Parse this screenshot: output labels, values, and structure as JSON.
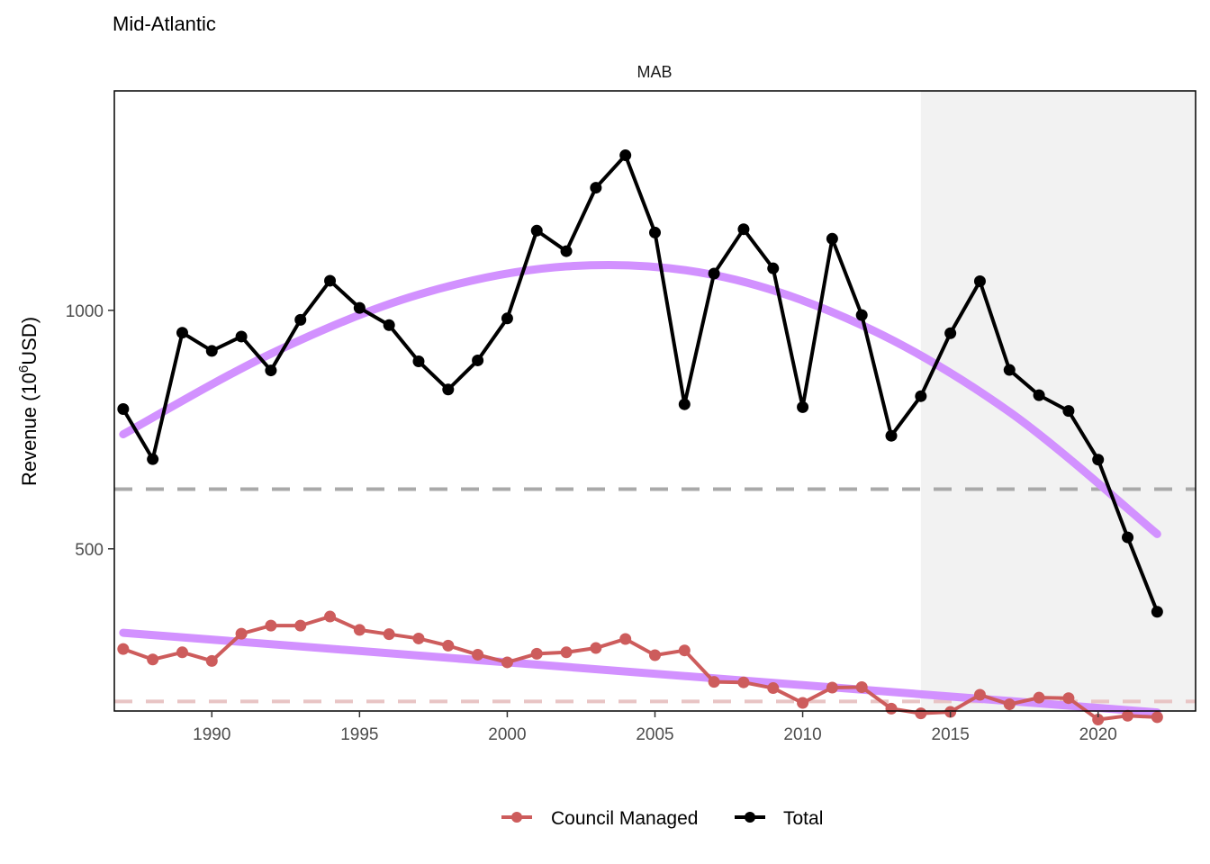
{
  "title": "Mid-Atlantic",
  "colors": {
    "total": "#000000",
    "council": "#CD5C5C",
    "trend": "#D291FF",
    "mean_total": "#A9A9A9",
    "mean_council": "#E8C4C4",
    "shade": "#F2F2F2"
  },
  "chart_data": {
    "type": "line",
    "facet_label": "MAB",
    "xlabel": "",
    "ylabel_main": "Revenue (10",
    "ylabel_sup": "6",
    "ylabel_end": "USD)",
    "xlim": [
      1986.7,
      2023.3
    ],
    "ylim": [
      160,
      1460
    ],
    "x_ticks": [
      1990,
      1995,
      2000,
      2005,
      2010,
      2015,
      2020
    ],
    "y_ticks": [
      500,
      1000
    ],
    "shaded_region": [
      2014,
      2023.3
    ],
    "x": [
      1987,
      1988,
      1989,
      1990,
      1991,
      1992,
      1993,
      1994,
      1995,
      1996,
      1997,
      1998,
      1999,
      2000,
      2001,
      2002,
      2003,
      2004,
      2005,
      2006,
      2007,
      2008,
      2009,
      2010,
      2011,
      2012,
      2013,
      2014,
      2015,
      2016,
      2017,
      2018,
      2019,
      2020,
      2021,
      2022
    ],
    "series": [
      {
        "name": "Total",
        "values": [
          793,
          688,
          953,
          915,
          945,
          874,
          980,
          1062,
          1005,
          969,
          893,
          834,
          895,
          983,
          1167,
          1124,
          1257,
          1325,
          1163,
          803,
          1077,
          1170,
          1088,
          797,
          1150,
          990,
          737,
          820,
          952,
          1061,
          875,
          822,
          789,
          687,
          524,
          368
        ]
      },
      {
        "name": "Council Managed",
        "values": [
          290,
          268,
          283,
          265,
          322,
          339,
          339,
          358,
          330,
          321,
          312,
          297,
          278,
          262,
          280,
          283,
          292,
          311,
          277,
          287,
          221,
          220,
          208,
          177,
          209,
          210,
          165,
          155,
          158,
          194,
          174,
          188,
          187,
          142,
          150,
          147
        ]
      }
    ],
    "trends": [
      {
        "x": [
          1987,
          1992,
          1997,
          2002,
          2007,
          2012,
          2017,
          2022
        ],
        "values": [
          740,
          909,
          1033,
          1092,
          1074,
          969,
          787,
          531
        ]
      },
      {
        "x": [
          1987,
          2022
        ],
        "values": [
          324,
          157
        ]
      }
    ],
    "reference_lines": [
      {
        "series": "Total",
        "value": 625
      },
      {
        "series": "Council Managed",
        "value": 180
      }
    ],
    "legend": {
      "position": "bottom",
      "items": [
        "Council Managed",
        "Total"
      ]
    }
  }
}
